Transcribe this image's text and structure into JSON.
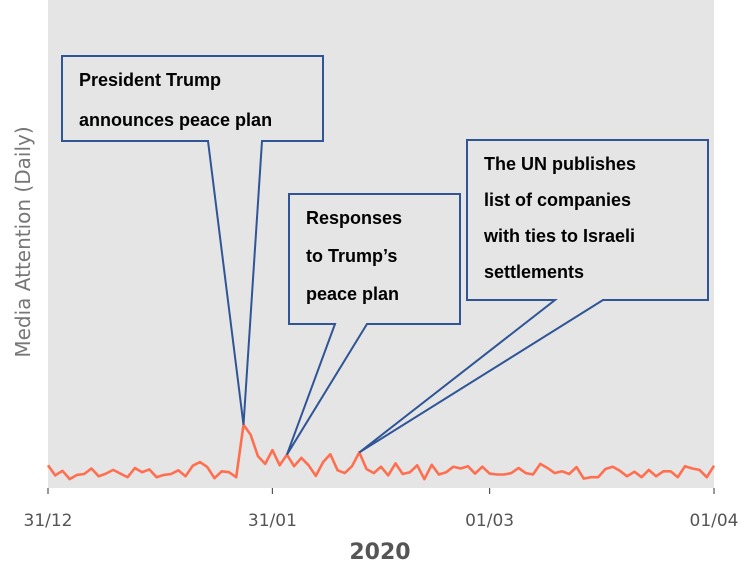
{
  "chart_data": {
    "type": "line",
    "title": "",
    "xlabel": "2020",
    "ylabel": "Media Attention (Daily)",
    "x_start": "2019-12-31",
    "x_end": "2020-04-01",
    "xlim": [
      "2019-12-31",
      "2020-04-01"
    ],
    "ylim": [
      0,
      100
    ],
    "grid": false,
    "x_ticks": [
      {
        "date": "2019-12-31",
        "label": "31/12"
      },
      {
        "date": "2020-01-31",
        "label": "31/01"
      },
      {
        "date": "2020-03-01",
        "label": "01/03"
      },
      {
        "date": "2020-04-01",
        "label": "01/04"
      }
    ],
    "series": [
      {
        "color": "#ff6f4f",
        "x": [
          "2019-12-31",
          "2020-01-01",
          "2020-01-02",
          "2020-01-03",
          "2020-01-04",
          "2020-01-05",
          "2020-01-06",
          "2020-01-07",
          "2020-01-08",
          "2020-01-09",
          "2020-01-10",
          "2020-01-11",
          "2020-01-12",
          "2020-01-13",
          "2020-01-14",
          "2020-01-15",
          "2020-01-16",
          "2020-01-17",
          "2020-01-18",
          "2020-01-19",
          "2020-01-20",
          "2020-01-21",
          "2020-01-22",
          "2020-01-23",
          "2020-01-24",
          "2020-01-25",
          "2020-01-26",
          "2020-01-27",
          "2020-01-28",
          "2020-01-29",
          "2020-01-30",
          "2020-01-31",
          "2020-02-01",
          "2020-02-02",
          "2020-02-03",
          "2020-02-04",
          "2020-02-05",
          "2020-02-06",
          "2020-02-07",
          "2020-02-08",
          "2020-02-09",
          "2020-02-10",
          "2020-02-11",
          "2020-02-12",
          "2020-02-13",
          "2020-02-14",
          "2020-02-15",
          "2020-02-16",
          "2020-02-17",
          "2020-02-18",
          "2020-02-19",
          "2020-02-20",
          "2020-02-21",
          "2020-02-22",
          "2020-02-23",
          "2020-02-24",
          "2020-02-25",
          "2020-02-26",
          "2020-02-27",
          "2020-02-28",
          "2020-02-29",
          "2020-03-01",
          "2020-03-02",
          "2020-03-03",
          "2020-03-04",
          "2020-03-05",
          "2020-03-06",
          "2020-03-07",
          "2020-03-08",
          "2020-03-09",
          "2020-03-10",
          "2020-03-11",
          "2020-03-12",
          "2020-03-13",
          "2020-03-14",
          "2020-03-15",
          "2020-03-16",
          "2020-03-17",
          "2020-03-18",
          "2020-03-19",
          "2020-03-20",
          "2020-03-21",
          "2020-03-22",
          "2020-03-23",
          "2020-03-24",
          "2020-03-25",
          "2020-03-26",
          "2020-03-27",
          "2020-03-28",
          "2020-03-29",
          "2020-03-30",
          "2020-03-31",
          "2020-04-01"
        ],
        "y": [
          3.2,
          1.0,
          2.0,
          0.2,
          1.1,
          1.3,
          2.5,
          0.8,
          1.4,
          2.2,
          1.4,
          0.6,
          2.6,
          1.7,
          2.3,
          0.6,
          1.1,
          1.3,
          2.1,
          0.8,
          3.1,
          3.9,
          2.8,
          0.4,
          1.9,
          1.7,
          0.6,
          12.0,
          9.8,
          5.2,
          3.5,
          6.5,
          3.2,
          5.5,
          3.0,
          4.8,
          3.2,
          0.9,
          3.9,
          5.6,
          2.1,
          1.5,
          3.0,
          6.0,
          2.4,
          1.5,
          2.9,
          1.0,
          3.6,
          1.3,
          1.7,
          3.2,
          0.2,
          3.3,
          1.2,
          1.7,
          2.9,
          2.5,
          3.0,
          1.4,
          2.9,
          1.4,
          1.2,
          1.2,
          1.5,
          2.6,
          1.5,
          1.2,
          3.5,
          2.6,
          1.5,
          1.9,
          1.3,
          2.8,
          0.3,
          0.6,
          0.6,
          2.4,
          2.9,
          2.0,
          0.8,
          1.8,
          0.6,
          2.2,
          0.8,
          1.9,
          1.9,
          0.6,
          3.0,
          2.5,
          2.2,
          0.6,
          3.1
        ]
      }
    ],
    "annotations": [
      {
        "lines": [
          "President Trump",
          "announces peace plan"
        ],
        "date": "2020-01-27"
      },
      {
        "lines": [
          "Responses",
          "to Trump’s",
          "peace plan"
        ],
        "date": "2020-02-02"
      },
      {
        "lines": [
          "The UN publishes",
          "list of companies",
          "with ties to Israeli",
          "settlements"
        ],
        "date": "2020-02-12"
      }
    ]
  }
}
